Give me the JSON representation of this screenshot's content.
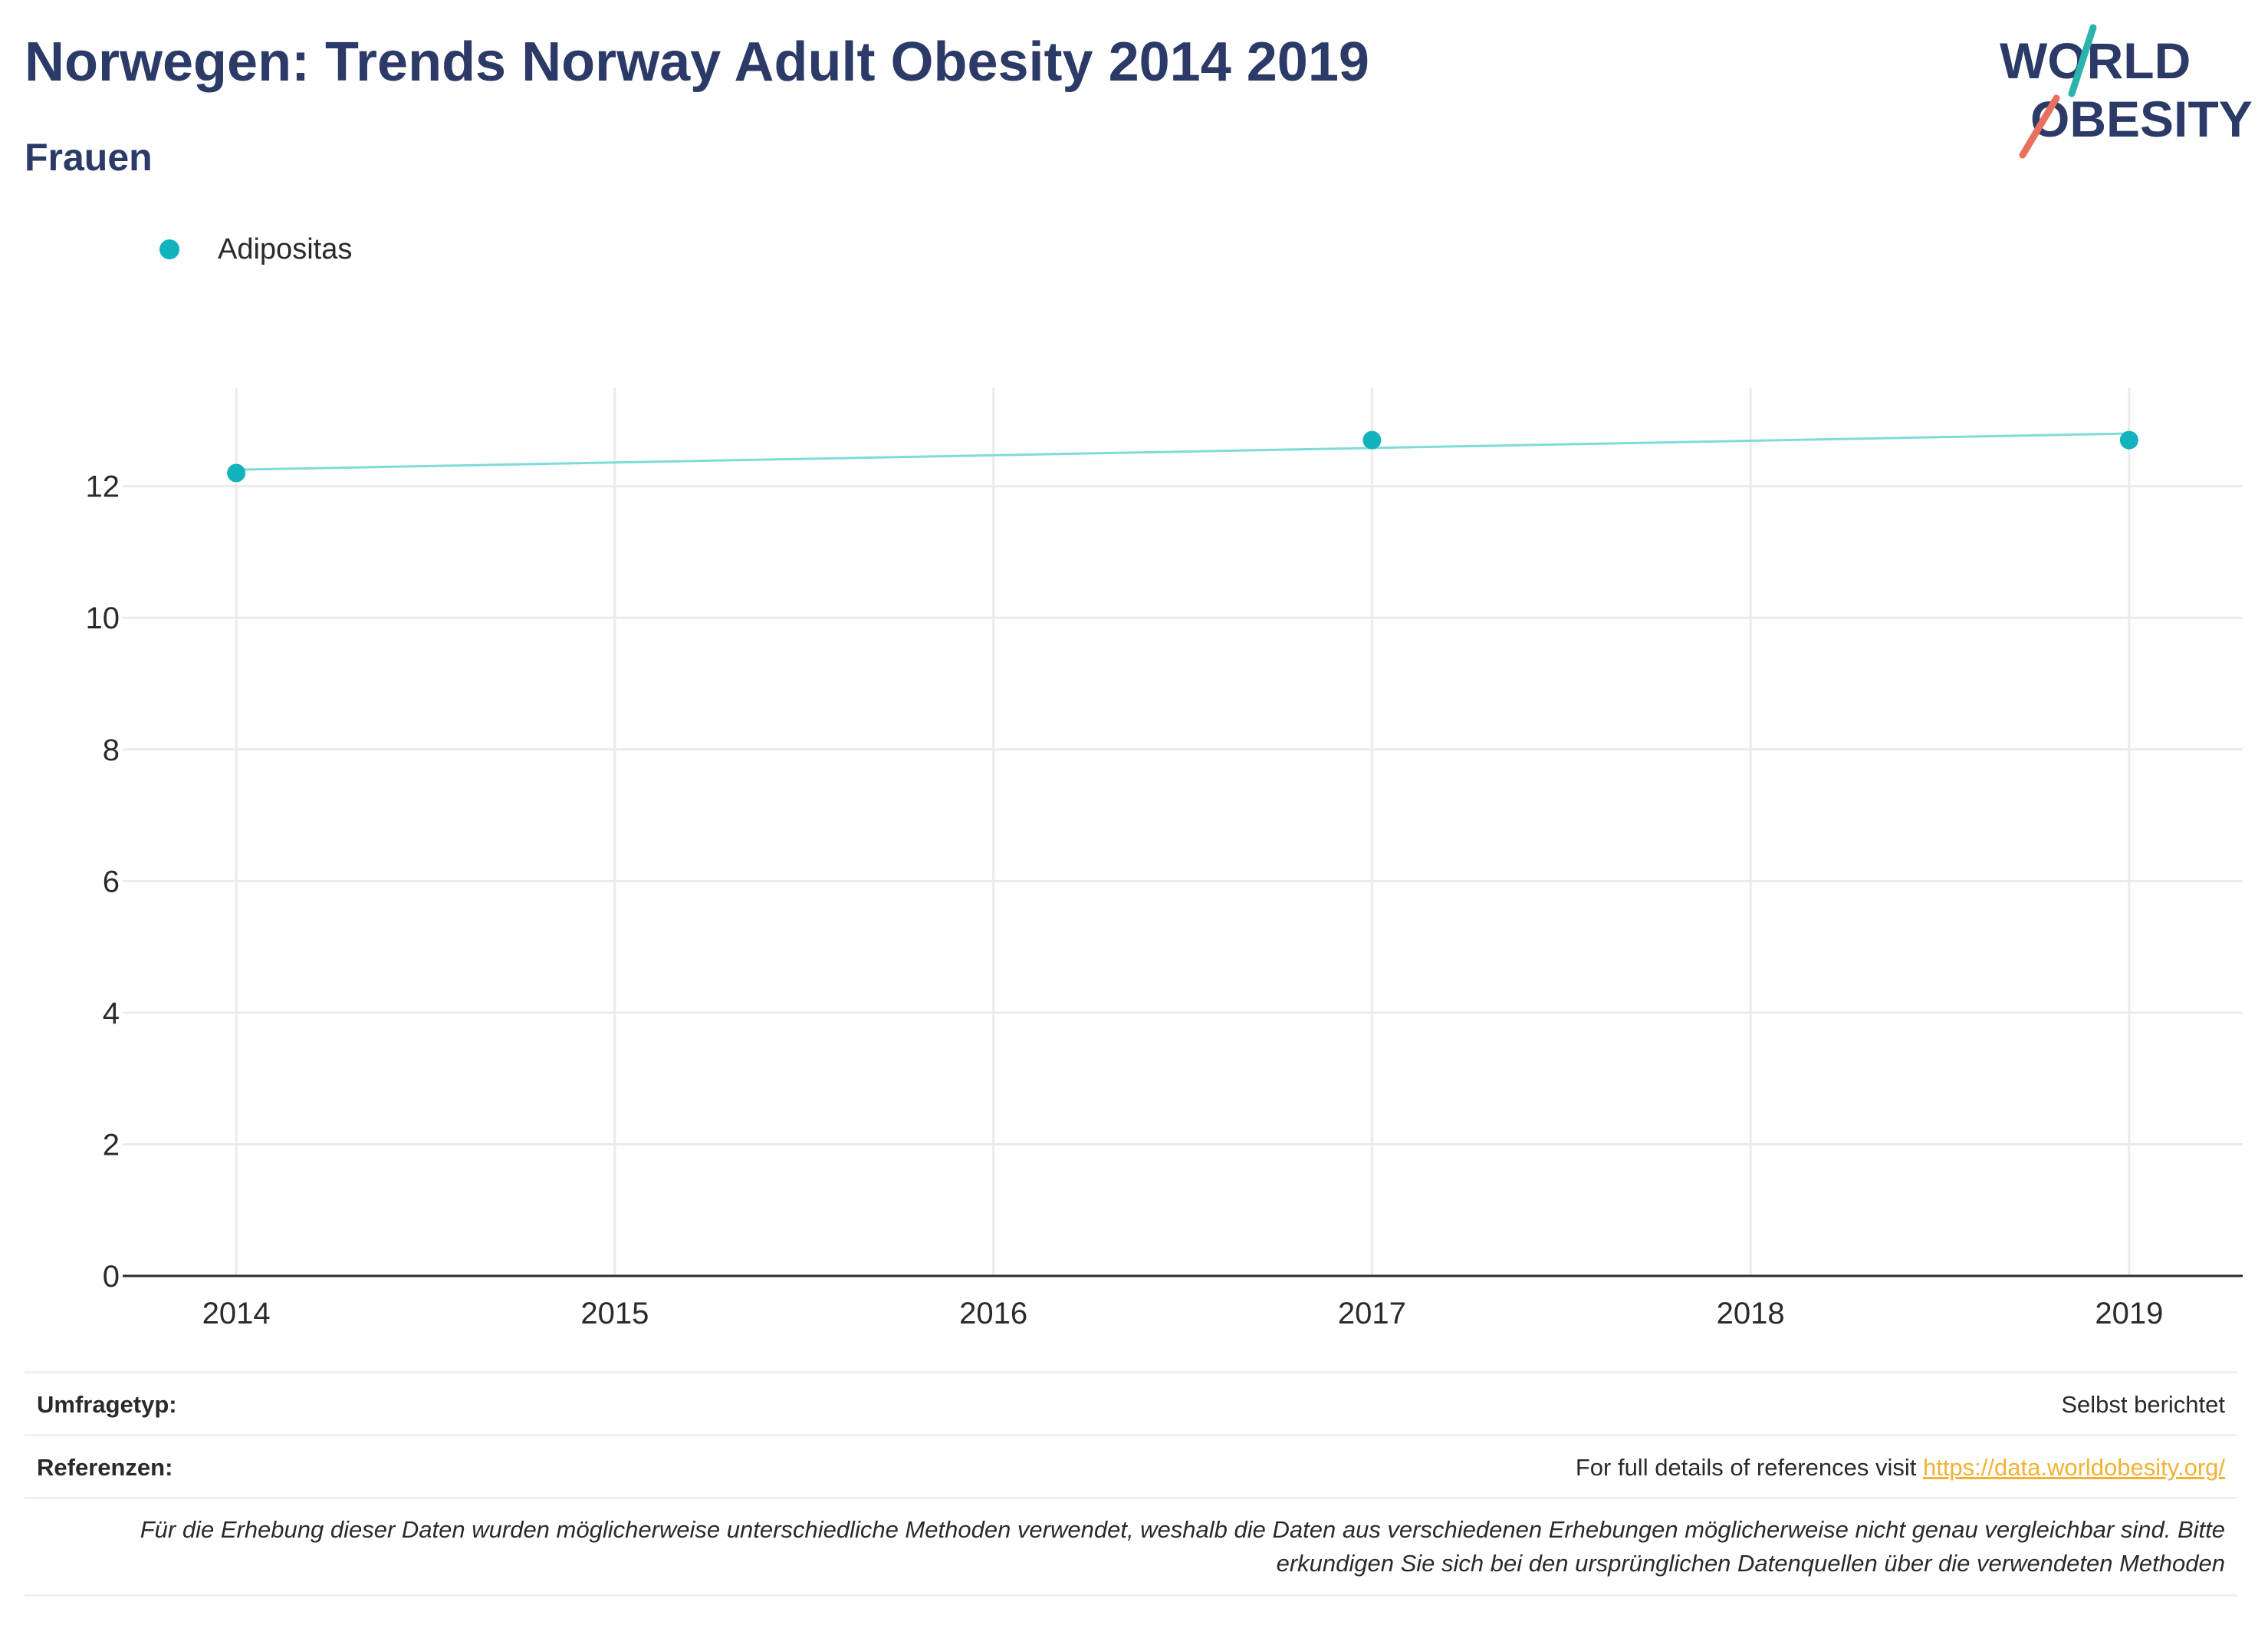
{
  "header": {
    "title": "Norwegen: Trends Norway Adult Obesity 2014 2019",
    "subtitle": "Frauen"
  },
  "logo": {
    "line1": "WORLD",
    "line2": "OBESITY",
    "colors": {
      "text": "#2b3a67",
      "teal": "#2bb3ad",
      "coral": "#e8705f"
    }
  },
  "colors": {
    "series": "#12b3be",
    "trend": "#7fdbd9",
    "grid": "#ebebeb",
    "axis": "#2a2a2a",
    "title": "#2b3a67"
  },
  "chart_data": {
    "type": "scatter",
    "title": "Norwegen: Trends Norway Adult Obesity 2014 2019",
    "subtitle": "Frauen",
    "xlabel": "",
    "ylabel": "",
    "x_ticks": [
      "2014",
      "2015",
      "2016",
      "2017",
      "2018",
      "2019"
    ],
    "y_ticks": [
      "0",
      "2",
      "4",
      "6",
      "8",
      "10",
      "12"
    ],
    "xlim": [
      2013.7,
      2019.3
    ],
    "ylim": [
      0,
      13.5
    ],
    "grid": true,
    "legend_position": "top-left",
    "series": [
      {
        "name": "Adipositas",
        "x": [
          2014,
          2017,
          2019
        ],
        "y": [
          12.2,
          12.7,
          12.7
        ]
      }
    ],
    "trendline": {
      "x": [
        2014,
        2019
      ],
      "y": [
        12.25,
        12.8
      ]
    }
  },
  "footer": {
    "survey_type_label": "Umfragetyp:",
    "survey_type_value": "Selbst berichtet",
    "references_label": "Referenzen:",
    "references_text": "For full details of references visit ",
    "references_link": "https://data.worldobesity.org/",
    "note": "Für die Erhebung dieser Daten wurden möglicherweise unterschiedliche Methoden verwendet, weshalb die Daten aus verschiedenen Erhebungen möglicherweise nicht genau vergleichbar sind. Bitte erkundigen Sie sich bei den ursprünglichen Datenquellen über die verwendeten Methoden"
  }
}
